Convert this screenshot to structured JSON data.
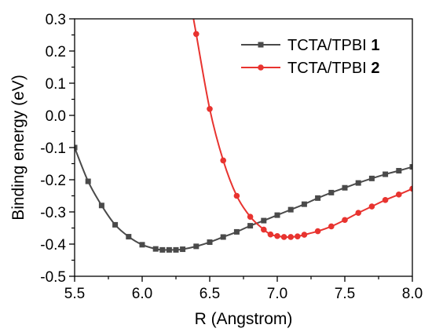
{
  "chart_data": {
    "type": "line",
    "xlabel": "R (Angstrom)",
    "ylabel": "Binding energy (eV)",
    "xlim": [
      5.5,
      8.0
    ],
    "ylim": [
      -0.5,
      0.3
    ],
    "xticks": [
      "5.5",
      "6.0",
      "6.5",
      "7.0",
      "7.5",
      "8.0"
    ],
    "yticks": [
      "0.3",
      "0.2",
      "0.1",
      "0.0",
      "-0.1",
      "-0.2",
      "-0.3",
      "-0.4",
      "-0.5"
    ],
    "grid": false,
    "legend_position": "top-right",
    "series": [
      {
        "name": "TCTA/TPBI",
        "name_bold": "1",
        "color": "#4a4a4a",
        "marker": "square",
        "x": [
          5.5,
          5.6,
          5.7,
          5.8,
          5.9,
          6.0,
          6.1,
          6.15,
          6.2,
          6.25,
          6.3,
          6.4,
          6.5,
          6.6,
          6.7,
          6.8,
          6.9,
          7.0,
          7.1,
          7.2,
          7.3,
          7.4,
          7.5,
          7.6,
          7.7,
          7.8,
          7.9,
          8.0
        ],
        "y": [
          -0.1,
          -0.205,
          -0.28,
          -0.34,
          -0.377,
          -0.402,
          -0.415,
          -0.418,
          -0.418,
          -0.418,
          -0.416,
          -0.407,
          -0.394,
          -0.378,
          -0.362,
          -0.343,
          -0.327,
          -0.31,
          -0.293,
          -0.276,
          -0.257,
          -0.24,
          -0.225,
          -0.21,
          -0.196,
          -0.183,
          -0.172,
          -0.16
        ]
      },
      {
        "name": "TCTA/TPBI",
        "name_bold": "2",
        "color": "#e8332f",
        "marker": "circle",
        "x": [
          6.38,
          6.4,
          6.5,
          6.6,
          6.7,
          6.8,
          6.9,
          6.95,
          7.0,
          7.05,
          7.1,
          7.15,
          7.2,
          7.3,
          7.4,
          7.5,
          7.6,
          7.7,
          7.8,
          7.9,
          8.0
        ],
        "y": [
          0.3,
          0.253,
          0.02,
          -0.14,
          -0.25,
          -0.315,
          -0.355,
          -0.37,
          -0.375,
          -0.378,
          -0.378,
          -0.376,
          -0.371,
          -0.36,
          -0.345,
          -0.325,
          -0.303,
          -0.283,
          -0.263,
          -0.246,
          -0.228
        ],
        "marker_from_index": 1
      }
    ]
  }
}
